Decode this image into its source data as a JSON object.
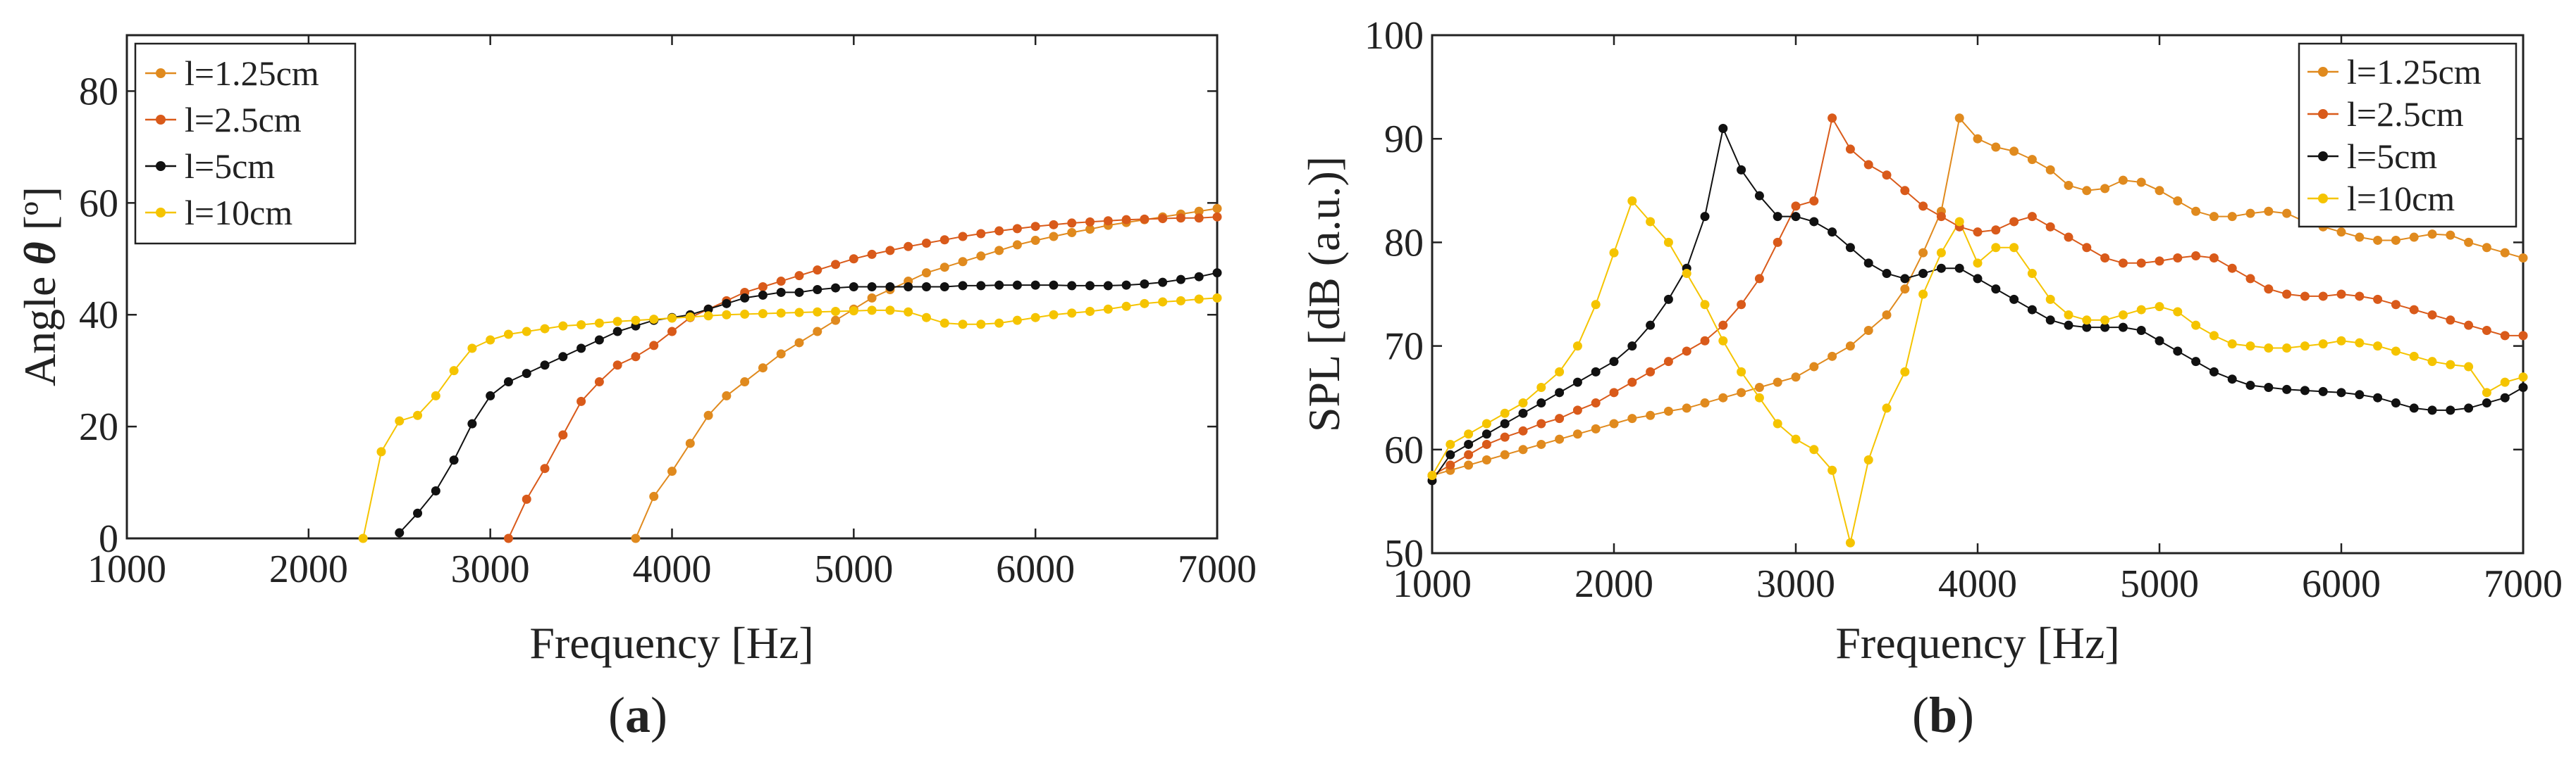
{
  "colors": {
    "l125": "#e08a1e",
    "l25": "#d95a1a",
    "l5": "#111111",
    "l10": "#f5c400",
    "axis": "#222222"
  },
  "captions": {
    "a_open": "(",
    "a_letter": "a",
    "a_close": ")",
    "b_open": "(",
    "b_letter": "b",
    "b_close": ")"
  },
  "chart_data": [
    {
      "id": "a",
      "type": "line",
      "xlabel": "Frequency [Hz]",
      "ylabel_prefix": "Angle ",
      "ylabel_symbol": "θ",
      "ylabel_unit": " [º]",
      "xlim": [
        1000,
        7000
      ],
      "ylim": [
        0,
        90
      ],
      "xticks": [
        1000,
        2000,
        3000,
        4000,
        5000,
        6000,
        7000
      ],
      "yticks": [
        0,
        20,
        40,
        60,
        80
      ],
      "legend_position": "top-left",
      "series": [
        {
          "name": "l=1.25cm",
          "color": "#e08a1e",
          "x": [
            3800,
            3900,
            4000,
            4100,
            4200,
            4300,
            4400,
            4500,
            4600,
            4700,
            4800,
            4900,
            5000,
            5100,
            5200,
            5300,
            5400,
            5500,
            5600,
            5700,
            5800,
            5900,
            6000,
            6100,
            6200,
            6300,
            6400,
            6500,
            6600,
            6700,
            6800,
            6900,
            7000
          ],
          "y": [
            0,
            7.5,
            12,
            17,
            22,
            25.5,
            28,
            30.5,
            33,
            35,
            37,
            39,
            41,
            43,
            44.5,
            46,
            47.5,
            48.5,
            49.5,
            50.5,
            51.5,
            52.5,
            53.3,
            54,
            54.7,
            55.3,
            56,
            56.5,
            57,
            57.5,
            58,
            58.5,
            59
          ]
        },
        {
          "name": "l=2.5cm",
          "color": "#d95a1a",
          "x": [
            3100,
            3200,
            3300,
            3400,
            3500,
            3600,
            3700,
            3800,
            3900,
            4000,
            4100,
            4200,
            4300,
            4400,
            4500,
            4600,
            4700,
            4800,
            4900,
            5000,
            5100,
            5200,
            5300,
            5400,
            5500,
            5600,
            5700,
            5800,
            5900,
            6000,
            6100,
            6200,
            6300,
            6400,
            6500,
            6600,
            6700,
            6800,
            6900,
            7000
          ],
          "y": [
            0,
            7,
            12.5,
            18.5,
            24.5,
            28,
            31,
            32.5,
            34.5,
            37,
            39.5,
            41,
            42.5,
            44,
            45,
            46,
            47,
            48,
            49,
            50,
            50.8,
            51.5,
            52.2,
            52.8,
            53.4,
            54,
            54.5,
            55,
            55.4,
            55.8,
            56.1,
            56.4,
            56.6,
            56.8,
            57,
            57.1,
            57.2,
            57.3,
            57.3,
            57.5
          ]
        },
        {
          "name": "l=5cm",
          "color": "#111111",
          "x": [
            2500,
            2600,
            2700,
            2800,
            2900,
            3000,
            3100,
            3200,
            3300,
            3400,
            3500,
            3600,
            3700,
            3800,
            3900,
            4000,
            4100,
            4200,
            4300,
            4400,
            4500,
            4600,
            4700,
            4800,
            4900,
            5000,
            5100,
            5200,
            5300,
            5400,
            5500,
            5600,
            5700,
            5800,
            5900,
            6000,
            6100,
            6200,
            6300,
            6400,
            6500,
            6600,
            6700,
            6800,
            6900,
            7000
          ],
          "y": [
            1,
            4.5,
            8.5,
            14,
            20.5,
            25.5,
            28,
            29.5,
            31,
            32.5,
            34,
            35.5,
            37,
            38,
            39,
            39.5,
            40,
            41,
            42,
            43,
            43.5,
            44,
            44,
            44.5,
            44.8,
            45,
            45,
            45,
            45,
            45,
            45,
            45.2,
            45.2,
            45.3,
            45.3,
            45.3,
            45.3,
            45.2,
            45.2,
            45.2,
            45.3,
            45.5,
            45.8,
            46.3,
            46.8,
            47.5
          ]
        },
        {
          "name": "l=10cm",
          "color": "#f5c400",
          "x": [
            2300,
            2400,
            2500,
            2600,
            2700,
            2800,
            2900,
            3000,
            3100,
            3200,
            3300,
            3400,
            3500,
            3600,
            3700,
            3800,
            3900,
            4000,
            4100,
            4200,
            4300,
            4400,
            4500,
            4600,
            4700,
            4800,
            4900,
            5000,
            5100,
            5200,
            5300,
            5400,
            5500,
            5600,
            5700,
            5800,
            5900,
            6000,
            6100,
            6200,
            6300,
            6400,
            6500,
            6600,
            6700,
            6800,
            6900,
            7000
          ],
          "y": [
            0,
            15.5,
            21,
            22,
            25.5,
            30,
            34,
            35.5,
            36.5,
            37,
            37.5,
            38,
            38.2,
            38.5,
            38.8,
            39,
            39.2,
            39.4,
            39.6,
            39.8,
            40,
            40.1,
            40.2,
            40.3,
            40.4,
            40.5,
            40.6,
            40.7,
            40.8,
            40.8,
            40.5,
            39.5,
            38.5,
            38.3,
            38.3,
            38.5,
            39,
            39.5,
            40,
            40.3,
            40.6,
            41,
            41.5,
            42,
            42.3,
            42.5,
            42.8,
            43
          ]
        }
      ]
    },
    {
      "id": "b",
      "type": "line",
      "xlabel": "Frequency [Hz]",
      "ylabel": "SPL [dB (a.u.)]",
      "xlim": [
        1000,
        7000
      ],
      "ylim": [
        50,
        100
      ],
      "xticks": [
        1000,
        2000,
        3000,
        4000,
        5000,
        6000,
        7000
      ],
      "yticks": [
        50,
        60,
        70,
        80,
        90,
        100
      ],
      "legend_position": "top-right",
      "series": [
        {
          "name": "l=1.25cm",
          "color": "#e08a1e",
          "x": [
            1000,
            1100,
            1200,
            1300,
            1400,
            1500,
            1600,
            1700,
            1800,
            1900,
            2000,
            2100,
            2200,
            2300,
            2400,
            2500,
            2600,
            2700,
            2800,
            2900,
            3000,
            3100,
            3200,
            3300,
            3400,
            3500,
            3600,
            3700,
            3800,
            3900,
            4000,
            4100,
            4200,
            4300,
            4400,
            4500,
            4600,
            4700,
            4800,
            4900,
            5000,
            5100,
            5200,
            5300,
            5400,
            5500,
            5600,
            5700,
            5800,
            5900,
            6000,
            6100,
            6200,
            6300,
            6400,
            6500,
            6600,
            6700,
            6800,
            6900,
            7000
          ],
          "y": [
            57.5,
            58,
            58.5,
            59,
            59.5,
            60,
            60.5,
            61,
            61.5,
            62,
            62.5,
            63,
            63.3,
            63.7,
            64,
            64.5,
            65,
            65.5,
            66,
            66.5,
            67,
            68,
            69,
            70,
            71.5,
            73,
            75.5,
            79,
            83,
            92,
            90,
            89.2,
            88.8,
            88,
            87,
            85.5,
            85,
            85.2,
            86,
            85.8,
            85,
            84,
            83,
            82.5,
            82.5,
            82.8,
            83,
            82.8,
            82,
            81.5,
            81,
            80.5,
            80.2,
            80.2,
            80.5,
            80.8,
            80.7,
            80,
            79.5,
            79,
            78.5
          ]
        },
        {
          "name": "l=2.5cm",
          "color": "#d95a1a",
          "x": [
            1000,
            1100,
            1200,
            1300,
            1400,
            1500,
            1600,
            1700,
            1800,
            1900,
            2000,
            2100,
            2200,
            2300,
            2400,
            2500,
            2600,
            2700,
            2800,
            2900,
            3000,
            3100,
            3200,
            3300,
            3400,
            3500,
            3600,
            3700,
            3800,
            3900,
            4000,
            4100,
            4200,
            4300,
            4400,
            4500,
            4600,
            4700,
            4800,
            4900,
            5000,
            5100,
            5200,
            5300,
            5400,
            5500,
            5600,
            5700,
            5800,
            5900,
            6000,
            6100,
            6200,
            6300,
            6400,
            6500,
            6600,
            6700,
            6800,
            6900,
            7000
          ],
          "y": [
            57.5,
            58.5,
            59.5,
            60.5,
            61.2,
            61.8,
            62.5,
            63,
            63.8,
            64.5,
            65.5,
            66.5,
            67.5,
            68.5,
            69.5,
            70.5,
            72,
            74,
            76.5,
            80,
            83.5,
            84,
            92,
            89,
            87.5,
            86.5,
            85,
            83.5,
            82.5,
            81.5,
            81,
            81.2,
            82,
            82.5,
            81.5,
            80.5,
            79.5,
            78.5,
            78,
            78,
            78.2,
            78.5,
            78.7,
            78.5,
            77.5,
            76.5,
            75.5,
            75,
            74.8,
            74.8,
            75,
            74.8,
            74.5,
            74,
            73.5,
            73,
            72.5,
            72,
            71.5,
            71,
            71
          ]
        },
        {
          "name": "l=5cm",
          "color": "#111111",
          "x": [
            1000,
            1100,
            1200,
            1300,
            1400,
            1500,
            1600,
            1700,
            1800,
            1900,
            2000,
            2100,
            2200,
            2300,
            2400,
            2500,
            2600,
            2700,
            2800,
            2900,
            3000,
            3100,
            3200,
            3300,
            3400,
            3500,
            3600,
            3700,
            3800,
            3900,
            4000,
            4100,
            4200,
            4300,
            4400,
            4500,
            4600,
            4700,
            4800,
            4900,
            5000,
            5100,
            5200,
            5300,
            5400,
            5500,
            5600,
            5700,
            5800,
            5900,
            6000,
            6100,
            6200,
            6300,
            6400,
            6500,
            6600,
            6700,
            6800,
            6900,
            7000
          ],
          "y": [
            57,
            59.5,
            60.5,
            61.5,
            62.5,
            63.5,
            64.5,
            65.5,
            66.5,
            67.5,
            68.5,
            70,
            72,
            74.5,
            77.5,
            82.5,
            91,
            87,
            84.5,
            82.5,
            82.5,
            82,
            81,
            79.5,
            78,
            77,
            76.5,
            77,
            77.5,
            77.5,
            76.5,
            75.5,
            74.5,
            73.5,
            72.5,
            72,
            71.8,
            71.8,
            71.8,
            71.5,
            70.5,
            69.5,
            68.5,
            67.5,
            66.8,
            66.2,
            66,
            65.8,
            65.7,
            65.6,
            65.5,
            65.3,
            65,
            64.5,
            64,
            63.8,
            63.8,
            64,
            64.5,
            65,
            66
          ]
        },
        {
          "name": "l=10cm",
          "color": "#f5c400",
          "x": [
            1000,
            1100,
            1200,
            1300,
            1400,
            1500,
            1600,
            1700,
            1800,
            1900,
            2000,
            2100,
            2200,
            2300,
            2400,
            2500,
            2600,
            2700,
            2800,
            2900,
            3000,
            3100,
            3200,
            3300,
            3400,
            3500,
            3600,
            3700,
            3800,
            3900,
            4000,
            4100,
            4200,
            4300,
            4400,
            4500,
            4600,
            4700,
            4800,
            4900,
            5000,
            5100,
            5200,
            5300,
            5400,
            5500,
            5600,
            5700,
            5800,
            5900,
            6000,
            6100,
            6200,
            6300,
            6400,
            6500,
            6600,
            6700,
            6800,
            6900,
            7000
          ],
          "y": [
            57.5,
            60.5,
            61.5,
            62.5,
            63.5,
            64.5,
            66,
            67.5,
            70,
            74,
            79,
            84,
            82,
            80,
            77,
            74,
            70.5,
            67.5,
            65,
            62.5,
            61,
            60,
            58,
            51,
            59,
            64,
            67.5,
            75,
            79,
            82,
            78,
            79.5,
            79.5,
            77,
            74.5,
            73,
            72.5,
            72.5,
            73,
            73.5,
            73.8,
            73.3,
            72,
            71,
            70.2,
            70,
            69.8,
            69.8,
            70,
            70.2,
            70.5,
            70.3,
            70,
            69.5,
            69,
            68.5,
            68.2,
            68,
            65.5,
            66.5,
            67
          ]
        }
      ]
    }
  ]
}
